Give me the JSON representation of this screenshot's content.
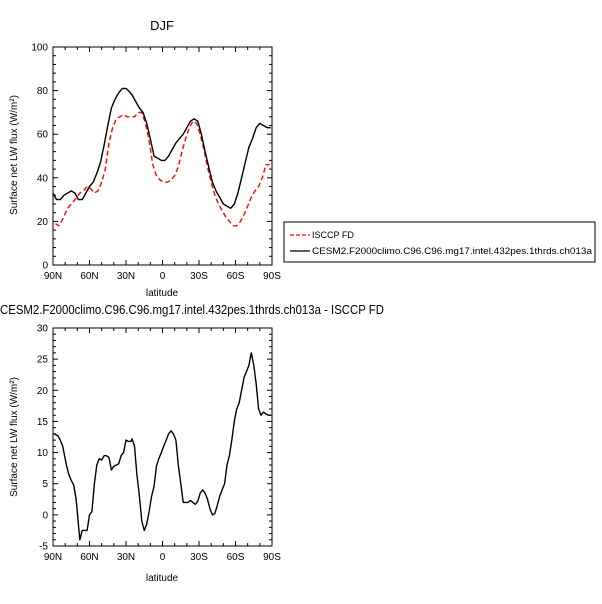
{
  "chart_data": [
    {
      "type": "line",
      "title": "DJF",
      "xlabel": "latitude",
      "ylabel": "Surface net LW flux (W/m²)",
      "xlim": [
        90,
        -90
      ],
      "ylim": [
        0,
        100
      ],
      "xticks": [
        90,
        60,
        30,
        0,
        -30,
        -60,
        -90
      ],
      "xtick_labels": [
        "90N",
        "60N",
        "30N",
        "0",
        "30S",
        "60S",
        "90S"
      ],
      "yticks": [
        0,
        20,
        40,
        60,
        80,
        100
      ],
      "ytick_labels": [
        "0",
        "20",
        "40",
        "60",
        "80",
        "100"
      ],
      "legend_position": "right",
      "series": [
        {
          "name": "ISCCP FD",
          "color": "#ff0000",
          "dash": "dashed",
          "x": [
            88,
            85,
            82,
            78,
            75,
            72,
            68,
            65,
            62,
            59,
            56,
            53,
            50,
            47,
            44,
            41,
            38,
            35,
            32,
            29,
            26,
            23,
            20,
            17,
            14,
            11,
            8,
            5,
            2,
            -1,
            -4,
            -7,
            -10,
            -13,
            -16,
            -19,
            -22,
            -25,
            -28,
            -31,
            -34,
            -37,
            -40,
            -43,
            -46,
            -49,
            -52,
            -55,
            -58,
            -61,
            -64,
            -67,
            -70,
            -73,
            -76,
            -79,
            -82,
            -85,
            -88
          ],
          "values": [
            19,
            18,
            21,
            26,
            28,
            30,
            33,
            34,
            36,
            35,
            33,
            34,
            38,
            44,
            56,
            63,
            67,
            68,
            69,
            68,
            68,
            68,
            70,
            70,
            65,
            57,
            46,
            41,
            39,
            38,
            38,
            39,
            41,
            45,
            52,
            58,
            63,
            66,
            65,
            60,
            53,
            45,
            38,
            32,
            28,
            25,
            22,
            20,
            18,
            18,
            20,
            23,
            27,
            31,
            34,
            36,
            40,
            46,
            46
          ]
        },
        {
          "name": "CESM2.F2000climo.C96.C96.mg17.intel.432pes.1thrds.ch013a",
          "color": "#000000",
          "dash": "solid",
          "x": [
            90,
            87,
            84,
            81,
            78,
            75,
            72,
            69,
            66,
            63,
            60,
            57,
            54,
            51,
            48,
            45,
            42,
            39,
            36,
            33,
            30,
            28,
            25,
            22,
            19,
            16,
            13,
            10,
            7,
            4,
            1,
            -2,
            -5,
            -8,
            -11,
            -14,
            -17,
            -20,
            -23,
            -26,
            -29,
            -32,
            -35,
            -38,
            -41,
            -44,
            -47,
            -50,
            -53,
            -56,
            -59,
            -62,
            -65,
            -68,
            -71,
            -74,
            -77,
            -80,
            -83,
            -86,
            -89
          ],
          "values": [
            33,
            30,
            30,
            32,
            33,
            34,
            33,
            30,
            30,
            33,
            36,
            38,
            42,
            47,
            55,
            64,
            72,
            76,
            79,
            81,
            81,
            80,
            78,
            75,
            72,
            70,
            65,
            58,
            50,
            49,
            48,
            48,
            50,
            53,
            56,
            58,
            60,
            63,
            66,
            67,
            66,
            60,
            52,
            45,
            38,
            34,
            31,
            28,
            27,
            26,
            28,
            33,
            40,
            47,
            54,
            58,
            63,
            65,
            64,
            63,
            63
          ]
        }
      ]
    },
    {
      "type": "line",
      "title": "CESM2.F2000climo.C96.C96.mg17.intel.432pes.1thrds.ch013a - ISCCP FD",
      "xlabel": "latitude",
      "ylabel": "Surface net LW flux (W/m²)",
      "xlim": [
        90,
        -90
      ],
      "ylim": [
        -5,
        30
      ],
      "xticks": [
        90,
        60,
        30,
        0,
        -30,
        -60,
        -90
      ],
      "xtick_labels": [
        "90N",
        "60N",
        "30N",
        "0",
        "30S",
        "60S",
        "90S"
      ],
      "yticks": [
        -5,
        0,
        5,
        10,
        15,
        20,
        25,
        30
      ],
      "ytick_labels": [
        "-5",
        "0",
        "5",
        "10",
        "15",
        "20",
        "25",
        "30"
      ],
      "series": [
        {
          "name": "",
          "color": "#000000",
          "dash": "solid",
          "x": [
            89,
            86,
            84,
            82,
            79,
            77,
            75,
            73,
            71,
            70,
            68,
            66,
            64,
            62,
            60,
            58,
            56,
            54,
            52,
            50,
            48,
            46,
            44,
            42,
            40,
            38,
            36,
            34,
            32,
            30,
            28,
            26,
            25,
            23,
            21,
            19,
            17,
            15,
            13,
            11,
            9,
            7,
            5,
            3,
            1,
            -1,
            -3,
            -5,
            -7,
            -9,
            -11,
            -13,
            -15,
            -17,
            -19,
            -21,
            -23,
            -25,
            -27,
            -29,
            -31,
            -33,
            -35,
            -37,
            -39,
            -41,
            -43,
            -45,
            -47,
            -49,
            -51,
            -53,
            -55,
            -57,
            -59,
            -61,
            -63,
            -65,
            -67,
            -69,
            -71,
            -73,
            -75,
            -77,
            -79,
            -81,
            -83,
            -85,
            -87,
            -89
          ],
          "values": [
            13,
            12.7,
            12,
            11,
            8,
            6.5,
            5.5,
            4.8,
            2.5,
            0.5,
            -4,
            -2.5,
            -2.5,
            -2.5,
            0,
            0.5,
            5,
            8,
            9,
            8.8,
            9.5,
            9.5,
            9.2,
            7.2,
            7.8,
            8,
            8.2,
            9.5,
            10,
            12,
            11.8,
            11.8,
            12.2,
            11,
            6.5,
            3,
            -1,
            -2.5,
            -1.5,
            0.5,
            3,
            4.5,
            7.8,
            9,
            10,
            11,
            12,
            13,
            13.5,
            13,
            12,
            8,
            5,
            2,
            2,
            2,
            2.3,
            2,
            1.7,
            2.2,
            3.5,
            4,
            3.5,
            2.5,
            1,
            0,
            0.2,
            1.5,
            3,
            4,
            5,
            8,
            9.5,
            12,
            15,
            17,
            18,
            20,
            22,
            23,
            24,
            26,
            24,
            21,
            17,
            16,
            16.5,
            16.2,
            16,
            16
          ]
        }
      ]
    }
  ],
  "legend": {
    "entries": [
      {
        "label": "ISCCP FD",
        "color": "#ff0000",
        "dash": "dashed"
      },
      {
        "label": "CESM2.F2000climo.C96.C96.mg17.intel.432pes.1thrds.ch013a",
        "color": "#000000",
        "dash": "solid"
      }
    ]
  }
}
